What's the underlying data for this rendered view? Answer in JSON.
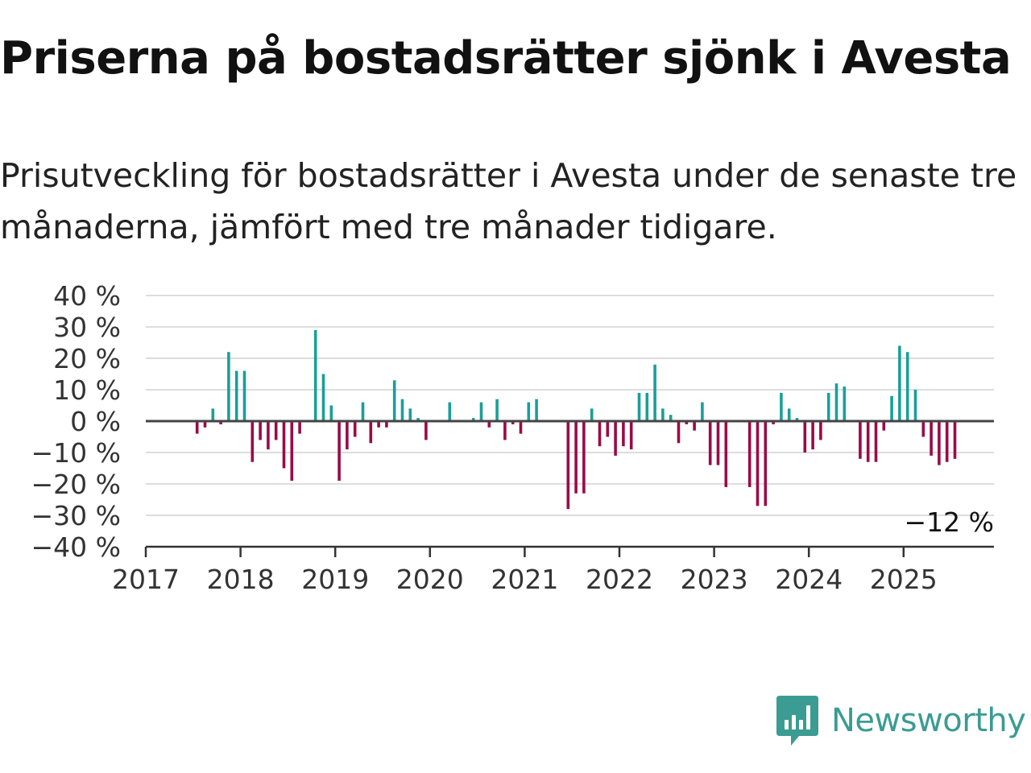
{
  "title": "Priserna på bostadsrätter sjönk i Avesta",
  "subtitle": "Prisutveckling för bostadsrätter i Avesta under de senaste tre månaderna, jämfört med tre månader tidigare.",
  "brand": {
    "name": "Newsworthy",
    "color": "#3a9c92"
  },
  "colors": {
    "positive": "#1a9f99",
    "negative": "#9b0a46",
    "zero_line": "#444444",
    "grid": "#dddddd"
  },
  "chart_data": {
    "type": "bar",
    "x_start": "2017-01",
    "x_unit": "month",
    "ylim": [
      -40,
      40
    ],
    "yticks": [
      40,
      30,
      20,
      10,
      0,
      -10,
      -20,
      -30,
      -40
    ],
    "ytick_labels": [
      "40 %",
      "30 %",
      "20 %",
      "10 %",
      "0 %",
      "−10 %",
      "−20 %",
      "−30 %",
      "−40 %"
    ],
    "xtick_labels": [
      "2017",
      "2018",
      "2019",
      "2020",
      "2021",
      "2022",
      "2023",
      "2024",
      "2025"
    ],
    "grid": true,
    "values": [
      null,
      null,
      null,
      null,
      null,
      null,
      -4,
      -2,
      4,
      -1,
      22,
      16,
      16,
      -13,
      -6,
      -9,
      -6,
      -15,
      -19,
      -4,
      null,
      29,
      15,
      5,
      -19,
      -9,
      -5,
      6,
      -7,
      -2,
      -2,
      13,
      7,
      4,
      1,
      -6,
      null,
      null,
      6,
      null,
      null,
      1,
      6,
      -2,
      7,
      -6,
      -1,
      -4,
      6,
      7,
      null,
      null,
      null,
      -28,
      -23,
      -23,
      4,
      -8,
      -5,
      -11,
      -8,
      -9,
      9,
      9,
      18,
      4,
      2,
      -7,
      -1,
      -3,
      6,
      -14,
      -14,
      -21,
      null,
      null,
      -21,
      -27,
      -27,
      -1,
      9,
      4,
      1,
      -10,
      -9,
      -6,
      9,
      12,
      11,
      null,
      -12,
      -13,
      -13,
      -3,
      8,
      24,
      22,
      10,
      -5,
      -11,
      -14,
      -13,
      -12
    ],
    "annotation": {
      "text": "−12 %",
      "value": -12
    }
  }
}
